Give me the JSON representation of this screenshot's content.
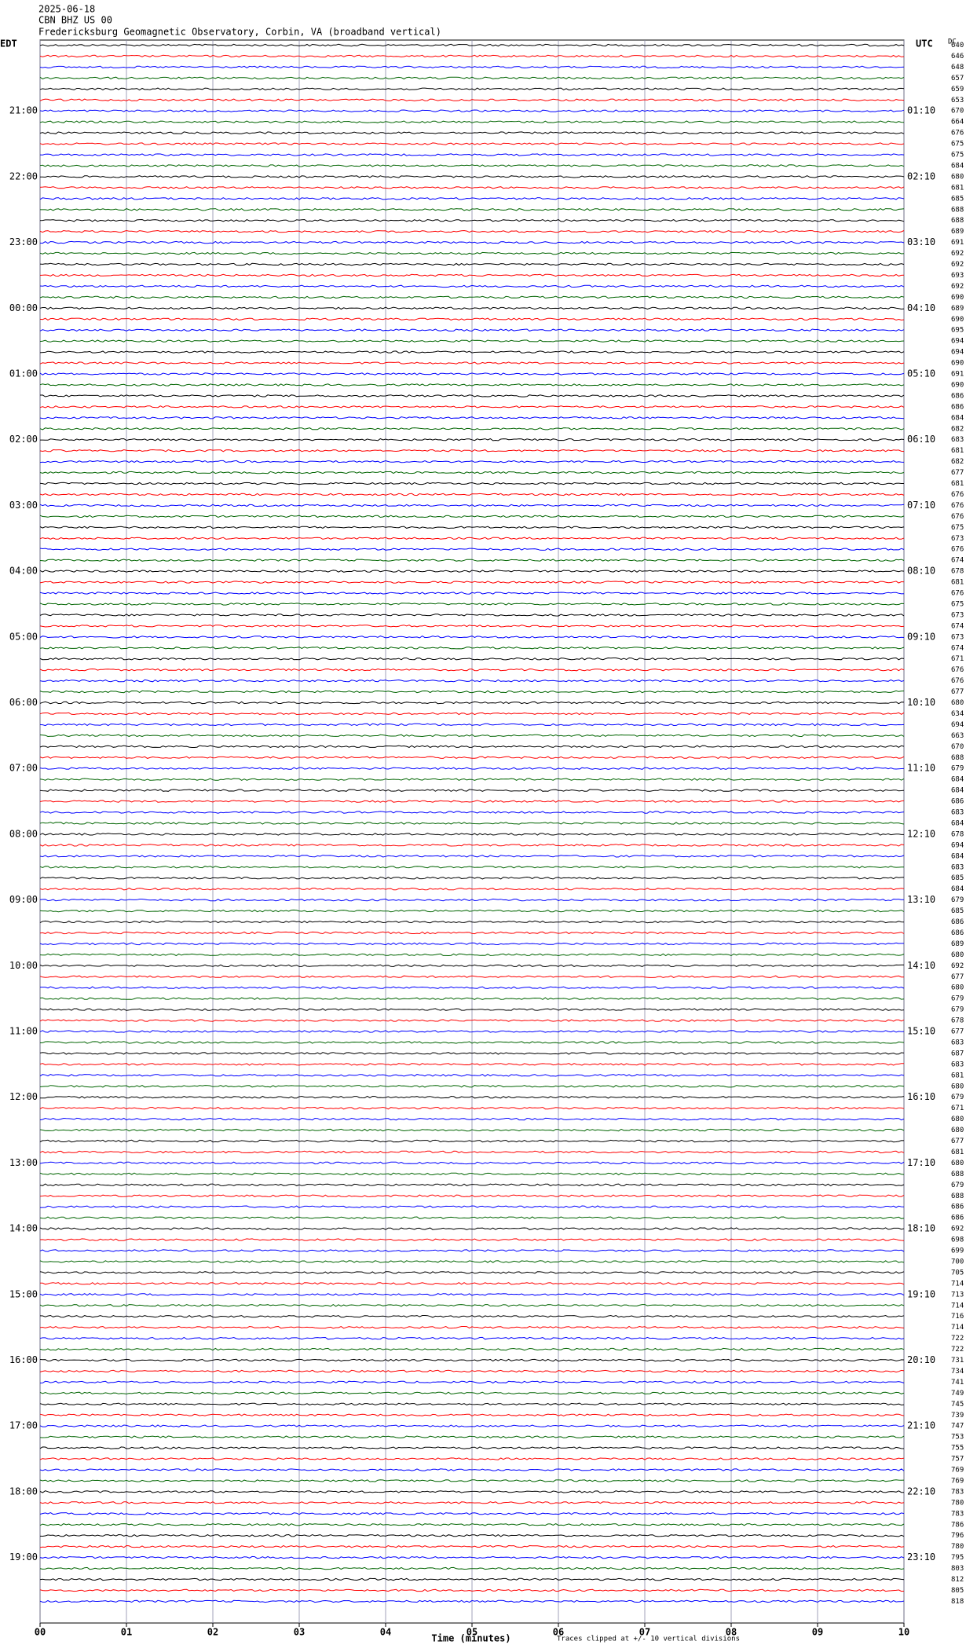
{
  "chart_data": {
    "type": "helicorder",
    "header": [
      "2025-06-18",
      "CBN BHZ US 00",
      "Fredericksburg Geomagnetic Observatory, Corbin, VA (broadband vertical)"
    ],
    "left_zone": "EDT",
    "right_zone": "UTC",
    "offset_label": "DC",
    "left_labels": [
      "21:00",
      "22:00",
      "23:00",
      "00:00",
      "01:00",
      "02:00",
      "03:00",
      "04:00",
      "05:00",
      "06:00",
      "07:00",
      "08:00",
      "09:00",
      "10:00",
      "11:00",
      "12:00",
      "13:00",
      "14:00",
      "15:00",
      "16:00",
      "17:00",
      "18:00",
      "19:00"
    ],
    "right_labels": [
      "01:10",
      "02:10",
      "03:10",
      "04:10",
      "05:10",
      "06:10",
      "07:10",
      "08:10",
      "09:10",
      "10:10",
      "11:10",
      "12:10",
      "13:10",
      "14:10",
      "15:10",
      "16:10",
      "17:10",
      "18:10",
      "19:10",
      "20:10",
      "21:10",
      "22:10",
      "23:10"
    ],
    "dc_offsets": [
      640,
      646,
      648,
      657,
      659,
      653,
      670,
      664,
      676,
      675,
      675,
      684,
      680,
      681,
      685,
      688,
      688,
      689,
      691,
      692,
      692,
      693,
      692,
      690,
      689,
      690,
      695,
      694,
      694,
      690,
      691,
      690,
      686,
      686,
      684,
      682,
      683,
      681,
      682,
      677,
      681,
      676,
      676,
      676,
      675,
      673,
      676,
      674,
      678,
      681,
      676,
      675,
      673,
      674,
      673,
      674,
      671,
      676,
      676,
      677,
      680,
      634,
      694,
      663,
      670,
      688,
      679,
      684,
      684,
      686,
      683,
      684,
      678,
      694,
      684,
      683,
      685,
      684,
      679,
      685,
      686,
      686,
      689,
      680,
      692,
      677,
      680,
      679,
      679,
      678,
      677,
      683,
      687,
      683,
      681,
      680,
      679,
      671,
      680,
      680,
      677,
      681,
      680,
      688,
      679,
      688,
      686,
      686,
      692,
      698,
      699,
      700,
      705,
      714,
      713,
      714,
      716,
      714,
      722,
      722,
      731,
      734,
      741,
      749,
      745,
      739,
      747,
      753,
      755,
      757,
      769,
      769,
      783,
      780,
      783,
      786,
      796,
      780,
      795,
      803,
      812,
      805,
      818
    ],
    "trace_colors": [
      "#000000",
      "#ff0000",
      "#0000ff",
      "#006400"
    ],
    "xlim": [
      0,
      10
    ],
    "xticks": [
      {
        "value": 0,
        "label": "00"
      },
      {
        "value": 1,
        "label": "01"
      },
      {
        "value": 2,
        "label": "02"
      },
      {
        "value": 3,
        "label": "03"
      },
      {
        "value": 4,
        "label": "04"
      },
      {
        "value": 5,
        "label": "05"
      },
      {
        "value": 6,
        "label": "06"
      },
      {
        "value": 7,
        "label": "07"
      },
      {
        "value": 8,
        "label": "08"
      },
      {
        "value": 9,
        "label": "09"
      },
      {
        "value": 10,
        "label": "10"
      }
    ],
    "x_label": "Time (minutes)",
    "footnote": "Traces clipped at +/- 10 vertical divisions",
    "grid": true
  }
}
